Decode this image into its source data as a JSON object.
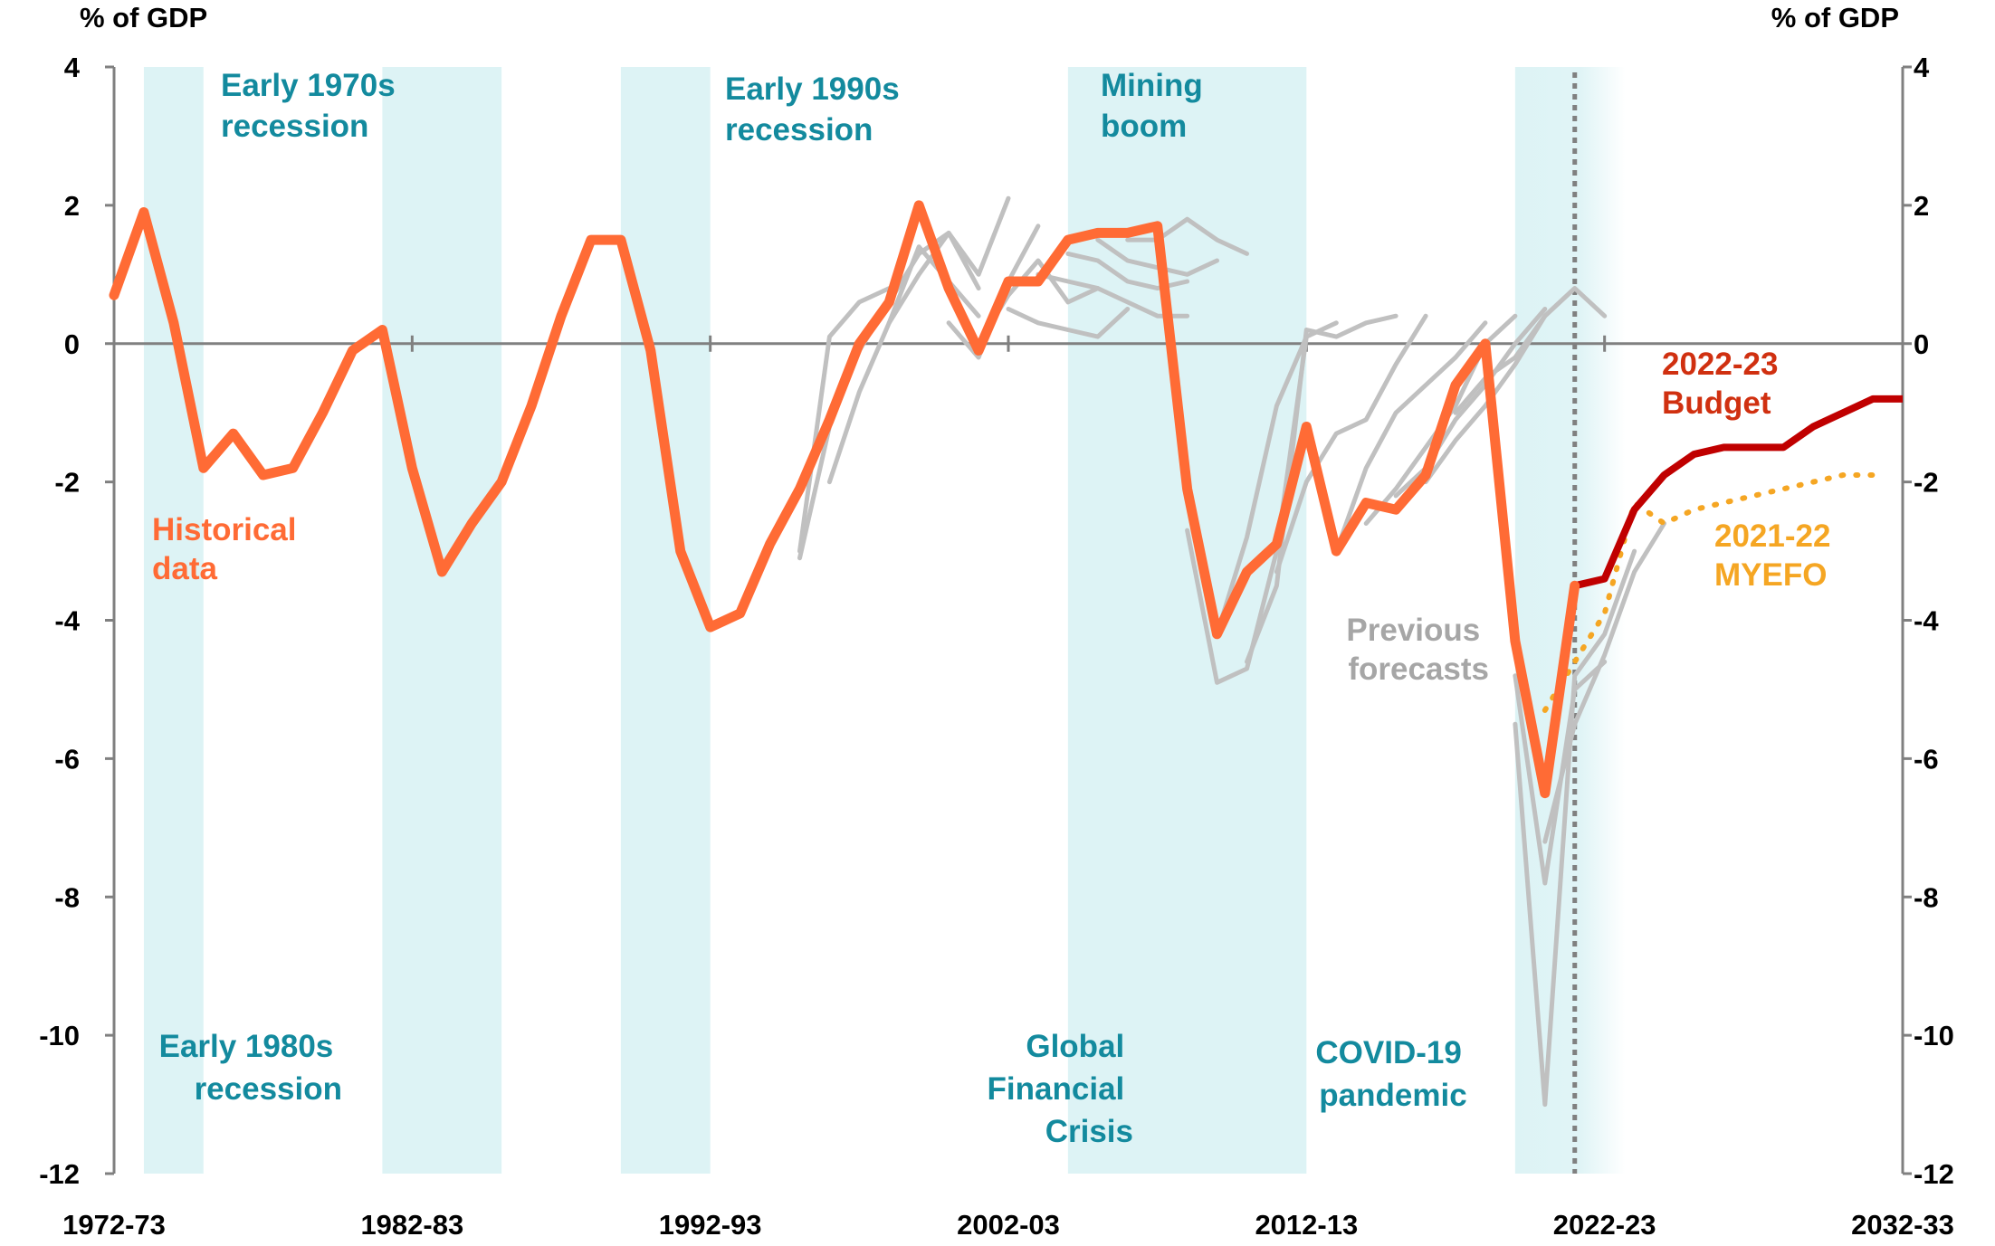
{
  "chart_data": {
    "type": "line",
    "title": "",
    "xlabel": "",
    "y_unit_left": "% of GDP",
    "y_unit_right": "% of GDP",
    "ylim": [
      -12,
      4
    ],
    "yticks": [
      4,
      2,
      0,
      -2,
      -4,
      -6,
      -8,
      -10,
      -12
    ],
    "x_start_year": 1972,
    "x_end_year": 2032,
    "xticks": [
      {
        "year": 1972,
        "label": "1972-73"
      },
      {
        "year": 1982,
        "label": "1982-83"
      },
      {
        "year": 1992,
        "label": "1992-93"
      },
      {
        "year": 2002,
        "label": "2002-03"
      },
      {
        "year": 2012,
        "label": "2012-13"
      },
      {
        "year": 2022,
        "label": "2022-23"
      },
      {
        "year": 2032,
        "label": "2032-33"
      }
    ],
    "budget_marker_year": 2021,
    "shaded_periods": [
      {
        "name": "Early 1970s recession",
        "start": 1973.0,
        "end": 1975.0
      },
      {
        "name": "Early 1980s recession",
        "start": 1981.0,
        "end": 1985.0
      },
      {
        "name": "Early 1990s recession",
        "start": 1989.0,
        "end": 1992.0
      },
      {
        "name": "Mining boom",
        "start": 2004.0,
        "end": 2012.0
      },
      {
        "name": "Global Financial Crisis",
        "start": 2007.0,
        "end": 2009.0
      },
      {
        "name": "COVID-19 pandemic",
        "start": 2019.0,
        "end": 2022.7
      }
    ],
    "annotations": {
      "early_1970s": [
        "Early 1970s",
        "recession"
      ],
      "early_1980s": [
        "Early 1980s",
        "recession"
      ],
      "early_1990s": [
        "Early 1990s",
        "recession"
      ],
      "mining_boom": [
        "Mining",
        "boom"
      ],
      "gfc": [
        "Global",
        "Financial",
        "Crisis"
      ],
      "covid": [
        "COVID-19",
        "pandemic"
      ],
      "historical": [
        "Historical",
        "data"
      ],
      "previous": [
        "Previous",
        "forecasts"
      ],
      "budget": [
        "2022-23",
        "Budget"
      ],
      "myefo": [
        "2021-22",
        "MYEFO"
      ]
    },
    "colors": {
      "historical": "#FF6B35",
      "budget": "#C00000",
      "myefo": "#F5A623",
      "previous": "#C0C0C0",
      "shade": "#DDF3F5",
      "annotation_teal": "#138A9E",
      "annotation_grey": "#A6A6A6",
      "axis": "#808080",
      "marker": "#808080"
    },
    "series": [
      {
        "name": "Historical data",
        "x": [
          1972,
          1973,
          1974,
          1975,
          1976,
          1977,
          1978,
          1979,
          1980,
          1981,
          1982,
          1983,
          1984,
          1985,
          1986,
          1987,
          1988,
          1989,
          1990,
          1991,
          1992,
          1993,
          1994,
          1995,
          1996,
          1997,
          1998,
          1999,
          2000,
          2001,
          2002,
          2003,
          2004,
          2005,
          2006,
          2007,
          2008,
          2009,
          2010,
          2011,
          2012,
          2013,
          2014,
          2015,
          2016,
          2017,
          2018,
          2019,
          2020,
          2021
        ],
        "values": [
          0.7,
          1.9,
          0.3,
          -1.8,
          -1.3,
          -1.9,
          -1.8,
          -1.0,
          -0.1,
          0.2,
          -1.8,
          -3.3,
          -2.6,
          -2.0,
          -0.9,
          0.4,
          1.5,
          1.5,
          -0.1,
          -3.0,
          -4.1,
          -3.9,
          -2.9,
          -2.1,
          -1.1,
          0.0,
          0.6,
          2.0,
          0.8,
          -0.1,
          0.9,
          0.9,
          1.5,
          1.6,
          1.6,
          1.7,
          -2.1,
          -4.2,
          -3.3,
          -2.9,
          -1.2,
          -3.0,
          -2.3,
          -2.4,
          -1.9,
          -0.6,
          0.0,
          -4.3,
          -6.5,
          -3.5
        ]
      },
      {
        "name": "2022-23 Budget",
        "x": [
          2021,
          2022,
          2023,
          2024,
          2025,
          2026,
          2027,
          2028,
          2029,
          2030,
          2031,
          2032
        ],
        "values": [
          -3.5,
          -3.4,
          -2.4,
          -1.9,
          -1.6,
          -1.5,
          -1.5,
          -1.5,
          -1.2,
          -1.0,
          -0.8,
          -0.8
        ]
      },
      {
        "name": "2021-22 MYEFO",
        "x": [
          2020,
          2021,
          2022,
          2023,
          2024,
          2025,
          2026,
          2027,
          2028,
          2029,
          2030,
          2031
        ],
        "values": [
          -5.3,
          -4.6,
          -3.9,
          -2.3,
          -2.6,
          -2.4,
          -2.3,
          -2.2,
          -2.1,
          -2.0,
          -1.9,
          -1.9
        ]
      },
      {
        "name": "Previous forecasts",
        "x": [
          1995,
          1996,
          1997,
          1998
        ],
        "values": [
          -3.0,
          0.1,
          0.6,
          0.8
        ]
      },
      {
        "name": "",
        "x": [
          1995,
          1996,
          1997,
          1998,
          1999,
          2000,
          2001
        ],
        "values": [
          -3.1,
          -1.2,
          -0.1,
          0.6,
          1.3,
          1.6,
          0.8
        ]
      },
      {
        "name": "",
        "x": [
          1996,
          1997,
          1998,
          1999,
          2000,
          2001
        ],
        "values": [
          -2.0,
          -0.7,
          0.3,
          1.4,
          0.9,
          0.4
        ]
      },
      {
        "name": "",
        "x": [
          1998,
          1999,
          2000,
          2001,
          2002
        ],
        "values": [
          0.3,
          1.0,
          1.6,
          1.0,
          2.1
        ]
      },
      {
        "name": "",
        "x": [
          2000,
          2001,
          2002,
          2003
        ],
        "values": [
          0.3,
          -0.2,
          0.9,
          1.7
        ]
      },
      {
        "name": "",
        "x": [
          2001,
          2002,
          2003,
          2004,
          2005
        ],
        "values": [
          0.0,
          0.7,
          1.2,
          0.6,
          0.8
        ]
      },
      {
        "name": "",
        "x": [
          2002,
          2003,
          2004,
          2005,
          2006
        ],
        "values": [
          0.5,
          0.3,
          0.2,
          0.1,
          0.5
        ]
      },
      {
        "name": "",
        "x": [
          2003,
          2004,
          2005,
          2006,
          2007,
          2008
        ],
        "values": [
          1.0,
          0.9,
          0.8,
          0.6,
          0.4,
          0.4
        ]
      },
      {
        "name": "",
        "x": [
          2004,
          2005,
          2006,
          2007,
          2008
        ],
        "values": [
          1.3,
          1.2,
          0.9,
          0.8,
          0.9
        ]
      },
      {
        "name": "",
        "x": [
          2005,
          2006,
          2007,
          2008,
          2009
        ],
        "values": [
          1.5,
          1.2,
          1.1,
          1.0,
          1.2
        ]
      },
      {
        "name": "",
        "x": [
          2006,
          2007,
          2008,
          2009,
          2010
        ],
        "values": [
          1.5,
          1.5,
          1.8,
          1.5,
          1.3
        ]
      },
      {
        "name": "",
        "x": [
          2008,
          2009,
          2010,
          2011,
          2012
        ],
        "values": [
          -2.7,
          -4.9,
          -4.7,
          -3.0,
          0.1
        ]
      },
      {
        "name": "",
        "x": [
          2009,
          2010,
          2011,
          2012,
          2013
        ],
        "values": [
          -4.2,
          -2.8,
          -0.9,
          0.1,
          0.3
        ]
      },
      {
        "name": "",
        "x": [
          2010,
          2011,
          2012,
          2013,
          2014,
          2015
        ],
        "values": [
          -4.6,
          -3.5,
          0.2,
          0.1,
          0.3,
          0.4
        ]
      },
      {
        "name": "",
        "x": [
          2011,
          2012,
          2013,
          2014,
          2015,
          2016
        ],
        "values": [
          -3.3,
          -2.0,
          -1.3,
          -1.1,
          -0.3,
          0.4
        ]
      },
      {
        "name": "",
        "x": [
          2013,
          2014,
          2015,
          2016,
          2017,
          2018
        ],
        "values": [
          -3.0,
          -1.8,
          -1.0,
          -0.6,
          -0.2,
          0.3
        ]
      },
      {
        "name": "",
        "x": [
          2014,
          2015,
          2016,
          2017,
          2018,
          2019
        ],
        "values": [
          -2.6,
          -2.1,
          -1.5,
          -0.9,
          0.0,
          0.4
        ]
      },
      {
        "name": "",
        "x": [
          2015,
          2016,
          2017,
          2018,
          2019,
          2020
        ],
        "values": [
          -2.2,
          -1.8,
          -1.1,
          -0.6,
          0.0,
          0.5
        ]
      },
      {
        "name": "",
        "x": [
          2016,
          2017,
          2018,
          2019,
          2020,
          2021
        ],
        "values": [
          -2.0,
          -1.4,
          -0.9,
          -0.3,
          0.4,
          0.8
        ]
      },
      {
        "name": "",
        "x": [
          2017,
          2018,
          2019,
          2020,
          2021,
          2022
        ],
        "values": [
          -1.0,
          -0.5,
          -0.2,
          0.4,
          0.8,
          0.4
        ]
      },
      {
        "name": "",
        "x": [
          2019,
          2020,
          2021,
          2022,
          2023
        ],
        "values": [
          -5.5,
          -11.0,
          -4.8,
          -4.2,
          -3.0
        ]
      },
      {
        "name": "",
        "x": [
          2019,
          2020,
          2021,
          2022
        ],
        "values": [
          -4.8,
          -7.8,
          -5.0,
          -4.6
        ]
      },
      {
        "name": "",
        "x": [
          2020,
          2021,
          2022,
          2023,
          2024
        ],
        "values": [
          -7.2,
          -5.5,
          -4.5,
          -3.3,
          -2.6
        ]
      }
    ]
  }
}
